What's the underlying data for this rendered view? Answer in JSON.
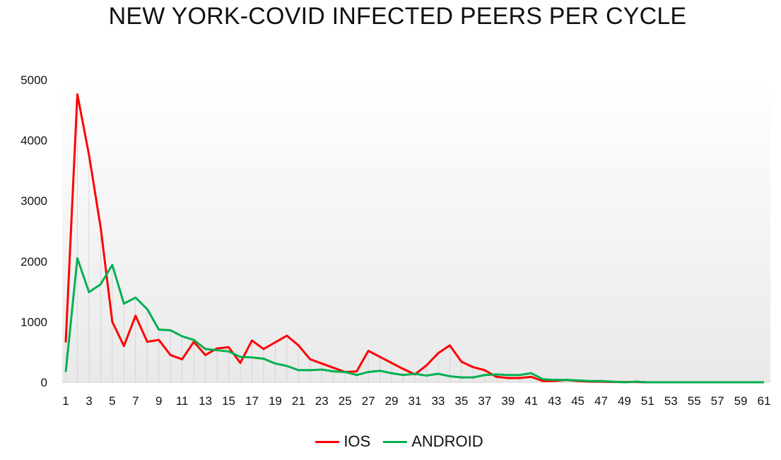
{
  "chart_data": {
    "type": "line",
    "title": "NEW YORK-COVID INFECTED PEERS PER CYCLE",
    "xlabel": "",
    "ylabel": "",
    "ylim": [
      0,
      5000
    ],
    "yticks": [
      "0",
      "1000",
      "2000",
      "3000",
      "4000",
      "5000"
    ],
    "x": [
      1,
      2,
      3,
      4,
      5,
      6,
      7,
      8,
      9,
      10,
      11,
      12,
      13,
      14,
      15,
      16,
      17,
      18,
      19,
      20,
      21,
      22,
      23,
      24,
      25,
      26,
      27,
      28,
      29,
      30,
      31,
      32,
      33,
      34,
      35,
      36,
      37,
      38,
      39,
      40,
      41,
      42,
      43,
      44,
      45,
      46,
      47,
      48,
      49,
      50,
      51,
      52,
      53,
      54,
      55,
      56,
      57,
      58,
      59,
      60,
      61
    ],
    "xtick_labels": [
      "1",
      "3",
      "5",
      "7",
      "9",
      "11",
      "13",
      "15",
      "17",
      "19",
      "21",
      "23",
      "25",
      "27",
      "29",
      "31",
      "33",
      "35",
      "37",
      "39",
      "41",
      "43",
      "45",
      "47",
      "49",
      "51",
      "53",
      "55",
      "57",
      "59",
      "61"
    ],
    "legend_position": "bottom",
    "grid": false,
    "series": [
      {
        "name": "IOS",
        "color": "#ff0000",
        "values": [
          660,
          4760,
          3760,
          2560,
          1000,
          600,
          1100,
          670,
          700,
          450,
          380,
          670,
          450,
          560,
          580,
          320,
          690,
          550,
          660,
          770,
          610,
          380,
          310,
          240,
          170,
          180,
          520,
          420,
          320,
          220,
          130,
          280,
          480,
          610,
          340,
          250,
          200,
          90,
          70,
          70,
          90,
          20,
          20,
          40,
          20,
          10,
          10,
          5,
          5,
          5,
          0,
          0,
          0,
          0,
          0,
          0,
          0,
          0,
          0,
          0,
          0
        ]
      },
      {
        "name": "ANDROID",
        "color": "#00b050",
        "values": [
          170,
          2050,
          1490,
          1620,
          1940,
          1300,
          1400,
          1210,
          870,
          860,
          760,
          700,
          550,
          530,
          510,
          420,
          410,
          390,
          310,
          270,
          200,
          200,
          210,
          180,
          170,
          120,
          170,
          190,
          150,
          120,
          140,
          110,
          140,
          100,
          80,
          80,
          120,
          130,
          120,
          120,
          150,
          50,
          40,
          40,
          30,
          20,
          20,
          10,
          0,
          10,
          0,
          0,
          0,
          0,
          0,
          0,
          0,
          0,
          0,
          0,
          0
        ]
      }
    ]
  }
}
